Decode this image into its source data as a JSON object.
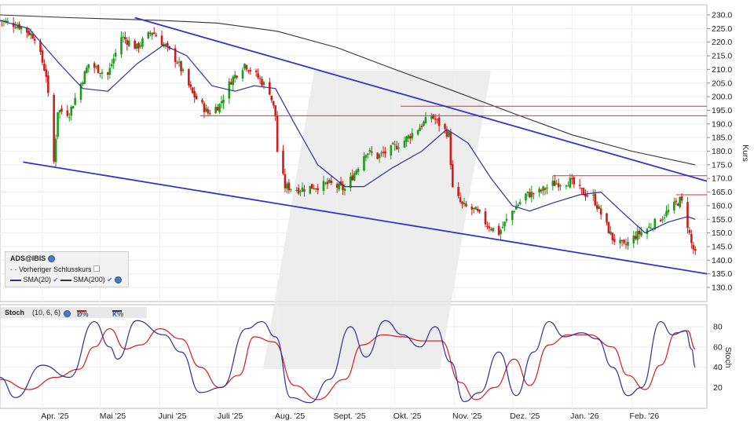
{
  "chart_data": [
    {
      "type": "candlestick",
      "symbol_label": "ADS@IBIS",
      "ylabel": "Kurs",
      "ylim": [
        125,
        233
      ],
      "yticks": [
        "230.0",
        "225.0",
        "220.0",
        "215.0",
        "210.0",
        "205.0",
        "200.0",
        "195.0",
        "190.0",
        "185.0",
        "180.0",
        "175.0",
        "170.0",
        "165.0",
        "160.0",
        "155.0",
        "150.0",
        "145.0",
        "140.0",
        "135.0",
        "130.0"
      ],
      "xticks": [
        "Apr. '25",
        "Mai '25",
        "Juni '25",
        "Juli '25",
        "Aug. '25",
        "Sept. '25",
        "Okt. '25",
        "Nov. '25",
        "Dez. '25",
        "Jan. '26",
        "Feb. '26"
      ],
      "legend": {
        "prev_close": "Vorheriger Schlusskurs",
        "sma20": "SMA(20)",
        "sma200": "SMA(200)"
      },
      "colors": {
        "up": "#1a9e1a",
        "down": "#d01c1c",
        "sma20": "#2e3192",
        "sma200": "#333333",
        "trend": "#3333cc",
        "level": "#e03030"
      },
      "price_keypoints": [
        [
          "2025-03-10",
          228
        ],
        [
          "2025-03-20",
          226
        ],
        [
          "2025-03-28",
          222
        ],
        [
          "2025-04-03",
          208
        ],
        [
          "2025-04-07",
          176
        ],
        [
          "2025-04-09",
          195
        ],
        [
          "2025-04-15",
          194
        ],
        [
          "2025-04-25",
          212
        ],
        [
          "2025-05-05",
          208
        ],
        [
          "2025-05-12",
          222
        ],
        [
          "2025-05-20",
          218
        ],
        [
          "2025-05-28",
          224
        ],
        [
          "2025-06-02",
          220
        ],
        [
          "2025-06-10",
          213
        ],
        [
          "2025-06-18",
          201
        ],
        [
          "2025-06-26",
          194
        ],
        [
          "2025-07-02",
          197
        ],
        [
          "2025-07-08",
          206
        ],
        [
          "2025-07-15",
          212
        ],
        [
          "2025-07-22",
          207
        ],
        [
          "2025-07-28",
          202
        ],
        [
          "2025-07-31",
          193
        ],
        [
          "2025-08-01",
          180
        ],
        [
          "2025-08-05",
          167
        ],
        [
          "2025-08-12",
          166
        ],
        [
          "2025-08-20",
          167
        ],
        [
          "2025-08-28",
          168
        ],
        [
          "2025-09-05",
          166
        ],
        [
          "2025-09-10",
          172
        ],
        [
          "2025-09-16",
          180
        ],
        [
          "2025-09-22",
          178
        ],
        [
          "2025-09-30",
          181
        ],
        [
          "2025-10-06",
          184
        ],
        [
          "2025-10-14",
          189
        ],
        [
          "2025-10-20",
          193
        ],
        [
          "2025-10-24",
          190
        ],
        [
          "2025-10-29",
          186
        ],
        [
          "2025-10-31",
          166
        ],
        [
          "2025-11-05",
          160
        ],
        [
          "2025-11-12",
          158
        ],
        [
          "2025-11-18",
          153
        ],
        [
          "2025-11-24",
          150
        ],
        [
          "2025-12-01",
          158
        ],
        [
          "2025-12-08",
          164
        ],
        [
          "2025-12-15",
          165
        ],
        [
          "2025-12-22",
          168
        ],
        [
          "2025-12-31",
          169
        ],
        [
          "2026-01-06",
          165
        ],
        [
          "2026-01-12",
          163
        ],
        [
          "2026-01-16",
          157
        ],
        [
          "2026-01-22",
          148
        ],
        [
          "2026-01-28",
          145
        ],
        [
          "2026-02-03",
          149
        ],
        [
          "2026-02-10",
          152
        ],
        [
          "2026-02-17",
          156
        ],
        [
          "2026-02-23",
          160
        ],
        [
          "2026-02-26",
          162
        ],
        [
          "2026-02-27",
          161
        ],
        [
          "2026-03-02",
          153
        ],
        [
          "2026-03-04",
          146
        ],
        [
          "2026-03-06",
          142
        ]
      ],
      "sma20_keypoints": [
        [
          "2025-03-10",
          228
        ],
        [
          "2025-03-25",
          225
        ],
        [
          "2025-04-10",
          212
        ],
        [
          "2025-04-22",
          203
        ],
        [
          "2025-05-05",
          202
        ],
        [
          "2025-05-20",
          212
        ],
        [
          "2025-06-03",
          219
        ],
        [
          "2025-06-15",
          215
        ],
        [
          "2025-06-28",
          204
        ],
        [
          "2025-07-10",
          202
        ],
        [
          "2025-07-20",
          204
        ],
        [
          "2025-07-31",
          203
        ],
        [
          "2025-08-10",
          190
        ],
        [
          "2025-08-22",
          175
        ],
        [
          "2025-09-05",
          167
        ],
        [
          "2025-09-15",
          167
        ],
        [
          "2025-09-30",
          174
        ],
        [
          "2025-10-15",
          180
        ],
        [
          "2025-10-28",
          188
        ],
        [
          "2025-11-08",
          183
        ],
        [
          "2025-11-20",
          170
        ],
        [
          "2025-12-01",
          160
        ],
        [
          "2025-12-10",
          158
        ],
        [
          "2025-12-22",
          161
        ],
        [
          "2026-01-05",
          164
        ],
        [
          "2026-01-16",
          165
        ],
        [
          "2026-01-28",
          157
        ],
        [
          "2026-02-08",
          150
        ],
        [
          "2026-02-20",
          154
        ],
        [
          "2026-03-02",
          156
        ],
        [
          "2026-03-06",
          155
        ]
      ],
      "sma200_keypoints": [
        [
          "2025-03-10",
          230
        ],
        [
          "2025-04-15",
          229
        ],
        [
          "2025-06-01",
          228
        ],
        [
          "2025-07-01",
          227
        ],
        [
          "2025-08-01",
          224
        ],
        [
          "2025-09-01",
          218
        ],
        [
          "2025-10-01",
          210
        ],
        [
          "2025-11-01",
          202
        ],
        [
          "2025-12-01",
          194
        ],
        [
          "2026-01-01",
          186
        ],
        [
          "2026-02-01",
          180
        ],
        [
          "2026-03-06",
          175
        ]
      ],
      "trendlines": [
        {
          "name": "upper",
          "from": [
            "2025-05-19",
            229
          ],
          "to": [
            "2026-03-12",
            169
          ]
        },
        {
          "name": "lower",
          "from": [
            "2025-03-22",
            176
          ],
          "to": [
            "2026-03-12",
            135
          ]
        }
      ],
      "horizontal_levels": [
        {
          "from": "2025-06-22",
          "to": "2026-03-12",
          "value": 193
        },
        {
          "from": "2025-10-04",
          "to": "2026-03-12",
          "value": 196.5
        },
        {
          "from": "2025-12-22",
          "to": "2026-03-12",
          "value": 171
        },
        {
          "from": "2026-02-24",
          "to": "2026-03-12",
          "value": 164
        }
      ]
    },
    {
      "type": "line",
      "indicator": "Stoch",
      "params": "(10, 6, 6)",
      "ylabel": "Stoch",
      "ylim": [
        0,
        100
      ],
      "yticks": [
        "80",
        "60",
        "40",
        "20"
      ],
      "series": [
        {
          "name": "D%",
          "color": "#d01c1c",
          "keypoints": [
            [
              "2025-03-10",
              28
            ],
            [
              "2025-03-25",
              18
            ],
            [
              "2025-04-08",
              30
            ],
            [
              "2025-04-20",
              38
            ],
            [
              "2025-04-28",
              60
            ],
            [
              "2025-05-06",
              78
            ],
            [
              "2025-05-14",
              58
            ],
            [
              "2025-05-22",
              62
            ],
            [
              "2025-06-01",
              78
            ],
            [
              "2025-06-12",
              68
            ],
            [
              "2025-06-22",
              40
            ],
            [
              "2025-07-02",
              20
            ],
            [
              "2025-07-12",
              32
            ],
            [
              "2025-07-20",
              70
            ],
            [
              "2025-07-30",
              65
            ],
            [
              "2025-08-10",
              22
            ],
            [
              "2025-08-22",
              8
            ],
            [
              "2025-09-05",
              28
            ],
            [
              "2025-09-14",
              62
            ],
            [
              "2025-09-25",
              72
            ],
            [
              "2025-10-05",
              70
            ],
            [
              "2025-10-15",
              66
            ],
            [
              "2025-10-25",
              66
            ],
            [
              "2025-11-04",
              25
            ],
            [
              "2025-11-12",
              8
            ],
            [
              "2025-11-22",
              20
            ],
            [
              "2025-12-02",
              48
            ],
            [
              "2025-12-10",
              22
            ],
            [
              "2025-12-20",
              62
            ],
            [
              "2025-12-30",
              72
            ],
            [
              "2026-01-10",
              72
            ],
            [
              "2026-01-22",
              60
            ],
            [
              "2026-01-30",
              32
            ],
            [
              "2026-02-08",
              18
            ],
            [
              "2026-02-16",
              42
            ],
            [
              "2026-02-24",
              74
            ],
            [
              "2026-03-02",
              76
            ],
            [
              "2026-03-06",
              58
            ]
          ]
        },
        {
          "name": "K%",
          "color": "#2e3192",
          "keypoints": [
            [
              "2025-03-10",
              30
            ],
            [
              "2025-03-18",
              10
            ],
            [
              "2025-04-01",
              42
            ],
            [
              "2025-04-15",
              30
            ],
            [
              "2025-04-28",
              85
            ],
            [
              "2025-05-06",
              60
            ],
            [
              "2025-05-10",
              48
            ],
            [
              "2025-05-20",
              86
            ],
            [
              "2025-06-03",
              72
            ],
            [
              "2025-06-12",
              55
            ],
            [
              "2025-06-22",
              15
            ],
            [
              "2025-07-03",
              20
            ],
            [
              "2025-07-16",
              78
            ],
            [
              "2025-07-24",
              85
            ],
            [
              "2025-07-31",
              70
            ],
            [
              "2025-08-08",
              10
            ],
            [
              "2025-08-18",
              5
            ],
            [
              "2025-08-28",
              28
            ],
            [
              "2025-09-08",
              80
            ],
            [
              "2025-09-16",
              50
            ],
            [
              "2025-09-26",
              86
            ],
            [
              "2025-10-05",
              72
            ],
            [
              "2025-10-14",
              60
            ],
            [
              "2025-10-22",
              80
            ],
            [
              "2025-10-30",
              45
            ],
            [
              "2025-11-06",
              6
            ],
            [
              "2025-11-14",
              15
            ],
            [
              "2025-11-24",
              55
            ],
            [
              "2025-12-03",
              12
            ],
            [
              "2025-12-12",
              55
            ],
            [
              "2025-12-20",
              85
            ],
            [
              "2025-12-28",
              70
            ],
            [
              "2026-01-06",
              74
            ],
            [
              "2026-01-14",
              68
            ],
            [
              "2026-01-22",
              40
            ],
            [
              "2026-01-30",
              12
            ],
            [
              "2026-02-06",
              20
            ],
            [
              "2026-02-16",
              85
            ],
            [
              "2026-02-22",
              72
            ],
            [
              "2026-03-01",
              76
            ],
            [
              "2026-03-04",
              58
            ],
            [
              "2026-03-06",
              40
            ]
          ]
        }
      ],
      "xticks": [
        "Apr. '25",
        "Mai '25",
        "Juni '25",
        "Juli '25",
        "Aug. '25",
        "Sept. '25",
        "Okt. '25",
        "Nov. '25",
        "Dez. '25",
        "Jan. '26",
        "Feb. '26"
      ]
    }
  ]
}
